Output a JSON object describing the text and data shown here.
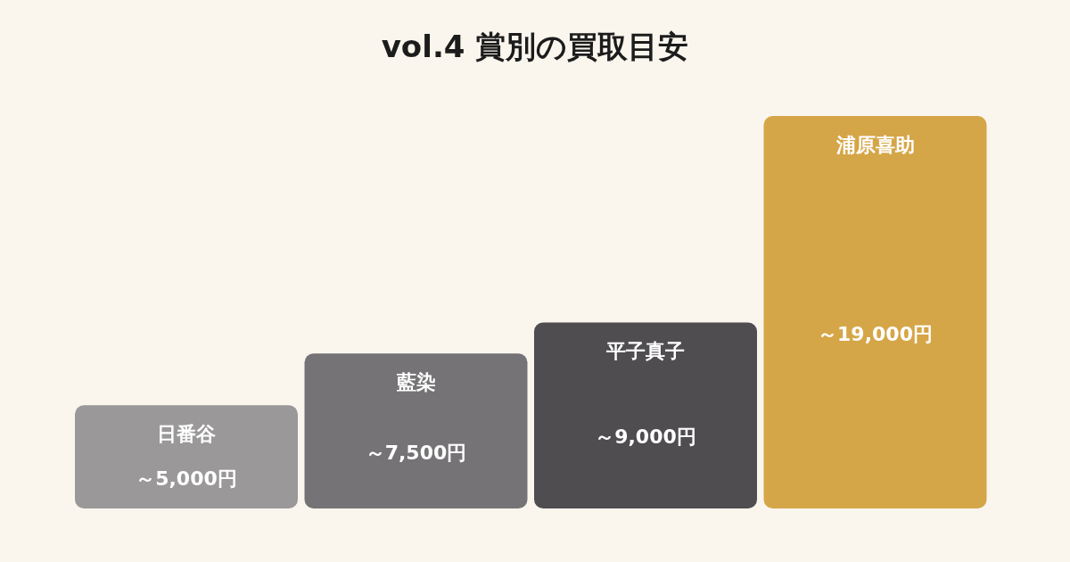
{
  "chart_data": {
    "type": "bar",
    "title": "vol.4 賞別の買取目安",
    "categories": [
      "日番谷",
      "藍染",
      "平子真子",
      "浦原喜助"
    ],
    "values": [
      5000,
      7500,
      9000,
      19000
    ],
    "colors": [
      "#9a9899",
      "#757375",
      "#4f4d50",
      "#d5a647"
    ],
    "value_labels": [
      "～5,000円",
      "～7,500円",
      "～9,000円",
      "～19,000円"
    ]
  }
}
